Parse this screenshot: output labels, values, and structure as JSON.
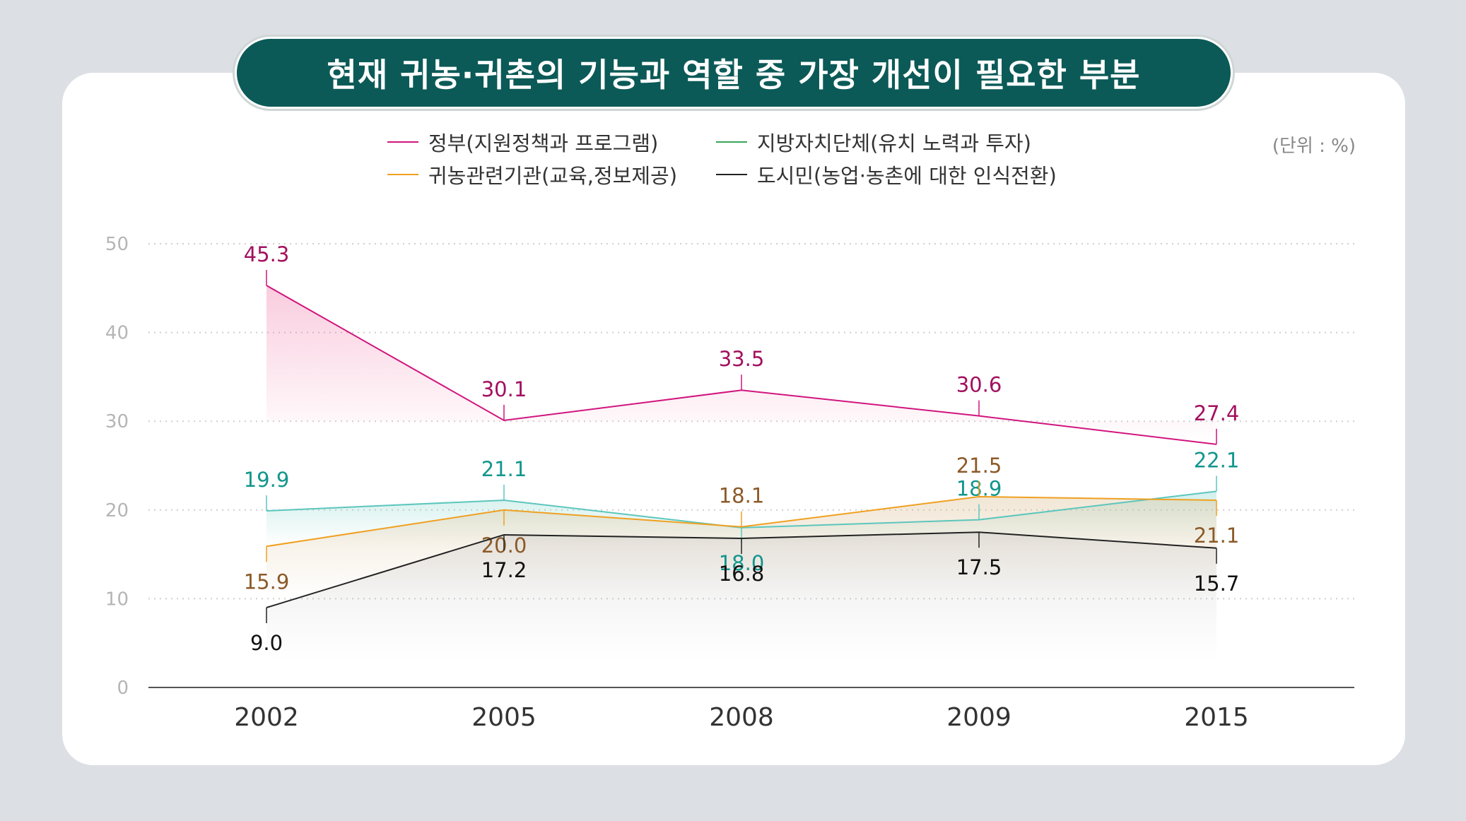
{
  "title": "현재 귀농·귀촌의 기능과 역할 중 가장 개선이 필요한 부분",
  "unit": "(단위 : %)",
  "colors": {
    "background": "#dcdfe3",
    "title_bg": "#0b5a57",
    "government": "#d1157e",
    "government_label": "#a3105f",
    "local": "#5cc6bd",
    "local_label": "#12968c",
    "agency": "#f0a020",
    "agency_label": "#8c5a28",
    "citizen": "#222222",
    "citizen_label": "#111111"
  },
  "legend": [
    {
      "label": "정부(지원정책과 프로그램)",
      "color": "#d1157e"
    },
    {
      "label": "지방자치단체(유치 노력과 투자)",
      "color": "#3aa657"
    },
    {
      "label": "귀농관련기관(교육,정보제공)",
      "color": "#f0a020"
    },
    {
      "label": "도시민(농업·농촌에 대한 인식전환)",
      "color": "#222222"
    }
  ],
  "chart_data": {
    "type": "line",
    "x": [
      "2002",
      "2005",
      "2008",
      "2009",
      "2015"
    ],
    "ylim": [
      0,
      50
    ],
    "yticks": [
      0,
      10,
      20,
      30,
      40,
      50
    ],
    "grid": true,
    "legend_position": "top",
    "series": [
      {
        "name": "정부(지원정책과 프로그램)",
        "values": [
          45.3,
          30.1,
          33.5,
          30.6,
          27.4
        ],
        "labels": [
          "45.3",
          "30.1",
          "33.5",
          "30.6",
          "27.4"
        ]
      },
      {
        "name": "지방자치단체(유치 노력과 투자)",
        "values": [
          19.9,
          21.1,
          18.0,
          18.9,
          22.1
        ],
        "labels": [
          "19.9",
          "21.1",
          "18.0",
          "18.9",
          "22.1"
        ]
      },
      {
        "name": "귀농관련기관(교육,정보제공)",
        "values": [
          15.9,
          20.0,
          18.1,
          21.5,
          21.1
        ],
        "labels": [
          "15.9",
          "20.0",
          "18.1",
          "21.5",
          "21.1"
        ]
      },
      {
        "name": "도시민(농업·농촌에 대한 인식전환)",
        "values": [
          9.0,
          17.2,
          16.8,
          17.5,
          15.7
        ],
        "labels": [
          "9.0",
          "17.2",
          "16.8",
          "17.5",
          "15.7"
        ]
      }
    ]
  }
}
